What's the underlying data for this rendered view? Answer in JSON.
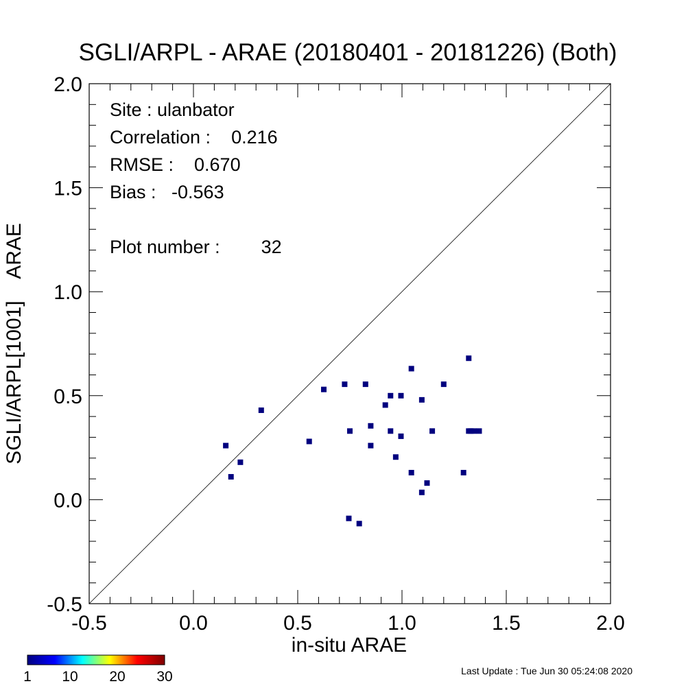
{
  "chart_data": {
    "type": "scatter",
    "title": "SGLI/ARPL - ARAE (20180401 - 20181226) (Both)",
    "xlabel": "in-situ ARAE",
    "ylabel": "SGLI/ARPL[1001]    ARAE",
    "xlim": [
      -0.5,
      2.0
    ],
    "ylim": [
      -0.5,
      2.0
    ],
    "x_ticks": [
      "-0.5",
      "0.0",
      "0.5",
      "1.0",
      "1.5",
      "2.0"
    ],
    "y_ticks": [
      "-0.5",
      "0.0",
      "0.5",
      "1.0",
      "1.5",
      "2.0"
    ],
    "one_to_one_line": true,
    "grid": false,
    "point_color": "#00007f",
    "points": [
      [
        0.155,
        0.26
      ],
      [
        0.18,
        0.11
      ],
      [
        0.225,
        0.18
      ],
      [
        0.325,
        0.43
      ],
      [
        0.555,
        0.28
      ],
      [
        0.625,
        0.53
      ],
      [
        0.725,
        0.555
      ],
      [
        0.745,
        -0.09
      ],
      [
        0.75,
        0.33
      ],
      [
        0.795,
        -0.115
      ],
      [
        0.825,
        0.555
      ],
      [
        0.85,
        0.26
      ],
      [
        0.85,
        0.355
      ],
      [
        0.92,
        0.455
      ],
      [
        0.945,
        0.5
      ],
      [
        0.945,
        0.33
      ],
      [
        0.97,
        0.205
      ],
      [
        0.995,
        0.5
      ],
      [
        0.995,
        0.305
      ],
      [
        1.045,
        0.13
      ],
      [
        1.045,
        0.63
      ],
      [
        1.095,
        0.48
      ],
      [
        1.095,
        0.035
      ],
      [
        1.12,
        0.08
      ],
      [
        1.145,
        0.33
      ],
      [
        1.2,
        0.555
      ],
      [
        1.295,
        0.13
      ],
      [
        1.32,
        0.68
      ],
      [
        1.32,
        0.33
      ],
      [
        1.345,
        0.33
      ],
      [
        1.37,
        0.33
      ],
      [
        1.33,
        0.33
      ]
    ]
  },
  "stats": {
    "site": "Site : ulanbator",
    "correlation": "Correlation :    0.216",
    "rmse": "RMSE :    0.670",
    "bias": "Bias :   -0.563",
    "plot_number": "Plot number :        32"
  },
  "colorbar": {
    "labels": [
      "1",
      "10",
      "20",
      "30"
    ],
    "colors": [
      "#00007f",
      "#0000ff",
      "#00ffff",
      "#ffff00",
      "#ff0000",
      "#7f0000"
    ]
  },
  "footer": {
    "last_update": "Last Update : Tue Jun 30 05:24:08 2020"
  }
}
